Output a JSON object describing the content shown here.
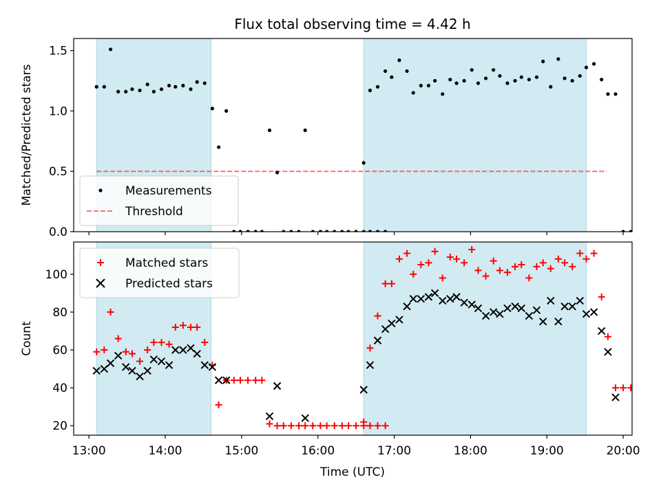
{
  "chart_data": {
    "title": "Flux total observing time = 4.42 h",
    "xlabel": "Time (UTC)",
    "x_unit": "hours UTC",
    "xlim": [
      "12:48",
      "20:07"
    ],
    "x_ticks": [
      "13:00",
      "14:00",
      "15:00",
      "16:00",
      "17:00",
      "18:00",
      "19:00",
      "20:00"
    ],
    "shaded_intervals": [
      [
        "13:06",
        "14:36"
      ],
      [
        "16:36",
        "19:31"
      ]
    ],
    "shade_color": "#add8e6",
    "panels": [
      {
        "type": "scatter",
        "ylabel": "Matched/Predicted stars",
        "ylim": [
          0,
          1.6
        ],
        "y_ticks": [
          "0.0",
          "0.5",
          "1.0",
          "1.5"
        ],
        "legend_position": "lower-left",
        "threshold": {
          "name": "Threshold",
          "value": 0.5,
          "x_range": [
            "13:06",
            "19:47"
          ],
          "color": "#ff0000",
          "style": "dashed"
        },
        "series": [
          {
            "name": "Measurements",
            "color": "#000000",
            "marker": "dot",
            "points": [
              [
                "13:06",
                1.2
              ],
              [
                "13:12",
                1.2
              ],
              [
                "13:17",
                1.51
              ],
              [
                "13:23",
                1.16
              ],
              [
                "13:29",
                1.16
              ],
              [
                "13:34",
                1.18
              ],
              [
                "13:40",
                1.17
              ],
              [
                "13:46",
                1.22
              ],
              [
                "13:51",
                1.16
              ],
              [
                "13:57",
                1.18
              ],
              [
                "14:03",
                1.21
              ],
              [
                "14:08",
                1.2
              ],
              [
                "14:14",
                1.21
              ],
              [
                "14:20",
                1.18
              ],
              [
                "14:25",
                1.24
              ],
              [
                "14:31",
                1.23
              ],
              [
                "14:37",
                1.02
              ],
              [
                "14:42",
                0.7
              ],
              [
                "14:48",
                1.0
              ],
              [
                "14:54",
                0.0
              ],
              [
                "14:59",
                0.0
              ],
              [
                "15:05",
                0.0
              ],
              [
                "15:11",
                0.0
              ],
              [
                "15:16",
                0.0
              ],
              [
                "15:22",
                0.84
              ],
              [
                "15:28",
                0.49
              ],
              [
                "15:33",
                0.0
              ],
              [
                "15:39",
                0.0
              ],
              [
                "15:45",
                0.0
              ],
              [
                "15:50",
                0.84
              ],
              [
                "15:56",
                0.0
              ],
              [
                "16:02",
                0.0
              ],
              [
                "16:07",
                0.0
              ],
              [
                "16:13",
                0.0
              ],
              [
                "16:19",
                0.0
              ],
              [
                "16:24",
                0.0
              ],
              [
                "16:30",
                0.0
              ],
              [
                "16:36",
                0.0
              ],
              [
                "16:41",
                0.0
              ],
              [
                "16:47",
                0.0
              ],
              [
                "16:53",
                0.0
              ],
              [
                "16:36",
                0.57
              ],
              [
                "16:41",
                1.17
              ],
              [
                "16:47",
                1.2
              ],
              [
                "16:53",
                1.33
              ],
              [
                "16:58",
                1.28
              ],
              [
                "17:04",
                1.42
              ],
              [
                "17:10",
                1.33
              ],
              [
                "17:15",
                1.15
              ],
              [
                "17:21",
                1.21
              ],
              [
                "17:27",
                1.21
              ],
              [
                "17:32",
                1.25
              ],
              [
                "17:38",
                1.14
              ],
              [
                "17:44",
                1.26
              ],
              [
                "17:49",
                1.23
              ],
              [
                "17:55",
                1.25
              ],
              [
                "18:01",
                1.34
              ],
              [
                "18:06",
                1.23
              ],
              [
                "18:12",
                1.27
              ],
              [
                "18:18",
                1.34
              ],
              [
                "18:23",
                1.29
              ],
              [
                "18:29",
                1.23
              ],
              [
                "18:35",
                1.25
              ],
              [
                "18:40",
                1.28
              ],
              [
                "18:46",
                1.26
              ],
              [
                "18:52",
                1.28
              ],
              [
                "18:57",
                1.41
              ],
              [
                "19:03",
                1.2
              ],
              [
                "19:09",
                1.43
              ],
              [
                "19:14",
                1.27
              ],
              [
                "19:20",
                1.25
              ],
              [
                "19:26",
                1.29
              ],
              [
                "19:31",
                1.36
              ],
              [
                "19:37",
                1.39
              ],
              [
                "19:43",
                1.26
              ],
              [
                "19:48",
                1.14
              ],
              [
                "19:54",
                1.14
              ],
              [
                "20:00",
                0.0
              ],
              [
                "20:06",
                0.0
              ],
              [
                "20:11",
                0.0
              ]
            ]
          }
        ]
      },
      {
        "type": "scatter",
        "ylabel": "Count",
        "ylim": [
          15,
          117
        ],
        "y_ticks": [
          "20",
          "40",
          "60",
          "80",
          "100"
        ],
        "legend_position": "upper-left",
        "series": [
          {
            "name": "Matched stars",
            "color": "#ff0000",
            "marker": "plus",
            "points": [
              [
                "13:06",
                59
              ],
              [
                "13:12",
                60
              ],
              [
                "13:17",
                80
              ],
              [
                "13:23",
                66
              ],
              [
                "13:29",
                59
              ],
              [
                "13:34",
                58
              ],
              [
                "13:40",
                54
              ],
              [
                "13:46",
                60
              ],
              [
                "13:51",
                64
              ],
              [
                "13:57",
                64
              ],
              [
                "14:03",
                63
              ],
              [
                "14:08",
                72
              ],
              [
                "14:14",
                73
              ],
              [
                "14:20",
                72
              ],
              [
                "14:25",
                72
              ],
              [
                "14:31",
                64
              ],
              [
                "14:37",
                52
              ],
              [
                "14:42",
                31
              ],
              [
                "14:48",
                44
              ],
              [
                "14:54",
                44
              ],
              [
                "14:59",
                44
              ],
              [
                "15:05",
                44
              ],
              [
                "15:11",
                44
              ],
              [
                "15:16",
                44
              ],
              [
                "15:22",
                21
              ],
              [
                "15:28",
                20
              ],
              [
                "15:33",
                20
              ],
              [
                "15:39",
                20
              ],
              [
                "15:45",
                20
              ],
              [
                "15:50",
                20
              ],
              [
                "15:56",
                20
              ],
              [
                "16:02",
                20
              ],
              [
                "16:07",
                20
              ],
              [
                "16:13",
                20
              ],
              [
                "16:19",
                20
              ],
              [
                "16:24",
                20
              ],
              [
                "16:30",
                20
              ],
              [
                "16:36",
                20
              ],
              [
                "16:41",
                20
              ],
              [
                "16:47",
                20
              ],
              [
                "16:53",
                20
              ],
              [
                "16:36",
                22
              ],
              [
                "16:41",
                61
              ],
              [
                "16:47",
                78
              ],
              [
                "16:53",
                95
              ],
              [
                "16:58",
                95
              ],
              [
                "17:04",
                108
              ],
              [
                "17:10",
                111
              ],
              [
                "17:15",
                100
              ],
              [
                "17:21",
                105
              ],
              [
                "17:27",
                106
              ],
              [
                "17:32",
                112
              ],
              [
                "17:38",
                98
              ],
              [
                "17:44",
                109
              ],
              [
                "17:49",
                108
              ],
              [
                "17:55",
                106
              ],
              [
                "18:01",
                113
              ],
              [
                "18:06",
                102
              ],
              [
                "18:12",
                99
              ],
              [
                "18:18",
                107
              ],
              [
                "18:23",
                102
              ],
              [
                "18:29",
                101
              ],
              [
                "18:35",
                104
              ],
              [
                "18:40",
                105
              ],
              [
                "18:46",
                98
              ],
              [
                "18:52",
                104
              ],
              [
                "18:57",
                106
              ],
              [
                "19:03",
                103
              ],
              [
                "19:09",
                108
              ],
              [
                "19:14",
                106
              ],
              [
                "19:20",
                104
              ],
              [
                "19:26",
                111
              ],
              [
                "19:31",
                108
              ],
              [
                "19:37",
                111
              ],
              [
                "19:43",
                88
              ],
              [
                "19:48",
                67
              ],
              [
                "19:54",
                40
              ],
              [
                "20:00",
                40
              ],
              [
                "20:06",
                40
              ],
              [
                "20:11",
                40
              ]
            ]
          },
          {
            "name": "Predicted stars",
            "color": "#000000",
            "marker": "x",
            "points": [
              [
                "13:06",
                49
              ],
              [
                "13:12",
                50
              ],
              [
                "13:17",
                53
              ],
              [
                "13:23",
                57
              ],
              [
                "13:29",
                51
              ],
              [
                "13:34",
                49
              ],
              [
                "13:40",
                46
              ],
              [
                "13:46",
                49
              ],
              [
                "13:51",
                55
              ],
              [
                "13:57",
                54
              ],
              [
                "14:03",
                52
              ],
              [
                "14:08",
                60
              ],
              [
                "14:14",
                60
              ],
              [
                "14:20",
                61
              ],
              [
                "14:25",
                58
              ],
              [
                "14:31",
                52
              ],
              [
                "14:37",
                51
              ],
              [
                "14:42",
                44
              ],
              [
                "14:48",
                44
              ],
              [
                "15:22",
                25
              ],
              [
                "15:28",
                41
              ],
              [
                "15:50",
                24
              ],
              [
                "16:36",
                39
              ],
              [
                "16:41",
                52
              ],
              [
                "16:47",
                65
              ],
              [
                "16:53",
                71
              ],
              [
                "16:58",
                74
              ],
              [
                "17:04",
                76
              ],
              [
                "17:10",
                83
              ],
              [
                "17:15",
                87
              ],
              [
                "17:21",
                87
              ],
              [
                "17:27",
                88
              ],
              [
                "17:32",
                90
              ],
              [
                "17:38",
                86
              ],
              [
                "17:44",
                87
              ],
              [
                "17:49",
                88
              ],
              [
                "17:55",
                85
              ],
              [
                "18:01",
                84
              ],
              [
                "18:06",
                82
              ],
              [
                "18:12",
                78
              ],
              [
                "18:18",
                80
              ],
              [
                "18:23",
                79
              ],
              [
                "18:29",
                82
              ],
              [
                "18:35",
                83
              ],
              [
                "18:40",
                82
              ],
              [
                "18:46",
                78
              ],
              [
                "18:52",
                81
              ],
              [
                "18:57",
                75
              ],
              [
                "19:03",
                86
              ],
              [
                "19:09",
                75
              ],
              [
                "19:14",
                83
              ],
              [
                "19:20",
                83
              ],
              [
                "19:26",
                86
              ],
              [
                "19:31",
                79
              ],
              [
                "19:37",
                80
              ],
              [
                "19:43",
                70
              ],
              [
                "19:48",
                59
              ],
              [
                "19:54",
                35
              ]
            ]
          }
        ]
      }
    ]
  }
}
